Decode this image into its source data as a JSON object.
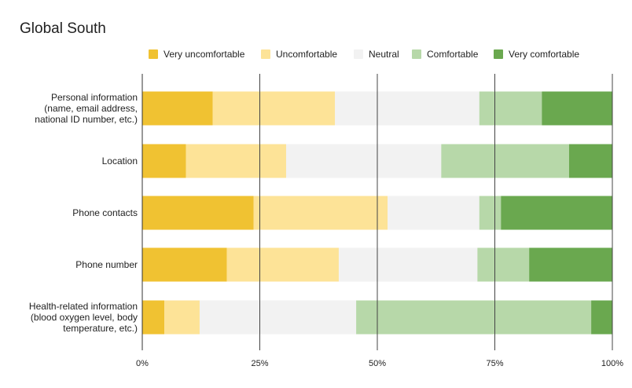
{
  "chart_data": {
    "type": "bar",
    "orientation": "horizontal",
    "stacked": "percent",
    "title": "Global South",
    "legend_position": "top",
    "categories": [
      [
        "Personal information",
        "(name, email address,",
        "national ID number, etc.)"
      ],
      [
        "Location"
      ],
      [
        "Phone contacts"
      ],
      [
        "Phone number"
      ],
      [
        "Health-related information",
        "(blood oxygen level, body",
        "temperature, etc.)"
      ]
    ],
    "series": [
      {
        "name": "Very uncomfortable",
        "color": "#f0c232",
        "values": [
          15,
          9.3,
          23.7,
          18,
          4.7
        ]
      },
      {
        "name": "Uncomfortable",
        "color": "#fde397",
        "values": [
          26,
          21.3,
          28.5,
          23.8,
          7.5
        ]
      },
      {
        "name": "Neutral",
        "color": "#f2f2f2",
        "values": [
          30.7,
          33,
          19.5,
          29.5,
          33.3
        ]
      },
      {
        "name": "Comfortable",
        "color": "#b7d8a9",
        "values": [
          13.3,
          27.2,
          4.6,
          11,
          50
        ]
      },
      {
        "name": "Very comfortable",
        "color": "#6aa84f",
        "values": [
          15,
          9.2,
          23.7,
          17.7,
          4.5
        ]
      }
    ],
    "xticks": [
      "0%",
      "25%",
      "50%",
      "75%",
      "100%"
    ],
    "xlim": [
      0,
      100
    ],
    "grid": true
  }
}
